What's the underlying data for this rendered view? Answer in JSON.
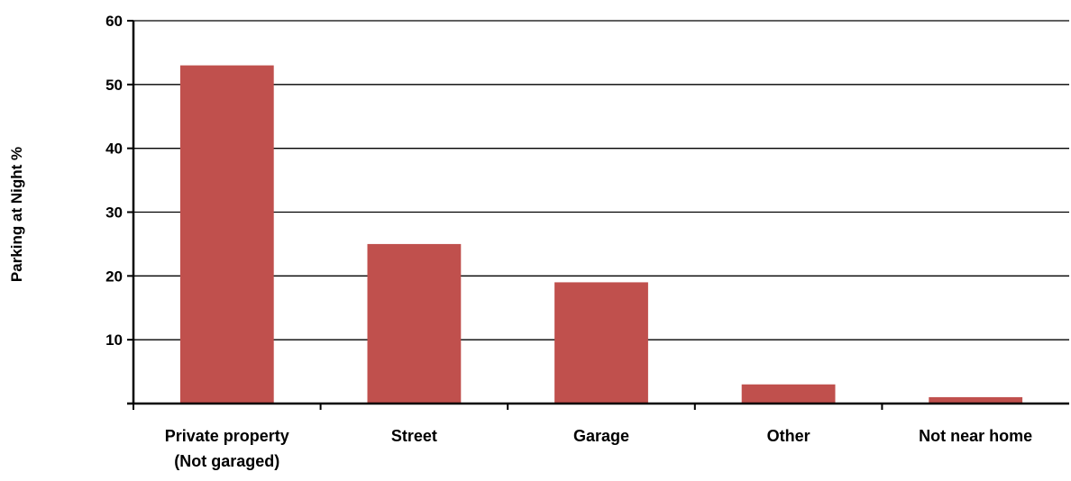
{
  "chart_data": {
    "type": "bar",
    "title": "",
    "xlabel": "",
    "ylabel": "Parking at Night %",
    "categories": [
      [
        "Private property",
        "(Not garaged)"
      ],
      [
        "Street"
      ],
      [
        "Garage"
      ],
      [
        "Other"
      ],
      [
        "Not near home"
      ]
    ],
    "values": [
      53,
      25,
      19,
      3,
      1
    ],
    "ylim": [
      0,
      60
    ],
    "yticks": [
      10,
      20,
      30,
      40,
      50,
      60
    ],
    "ytick_labels": [
      "10",
      "20",
      "30",
      "40",
      "50",
      "60"
    ],
    "grid": "horizontal",
    "legend": "none",
    "bar_color": "#c0504d"
  }
}
